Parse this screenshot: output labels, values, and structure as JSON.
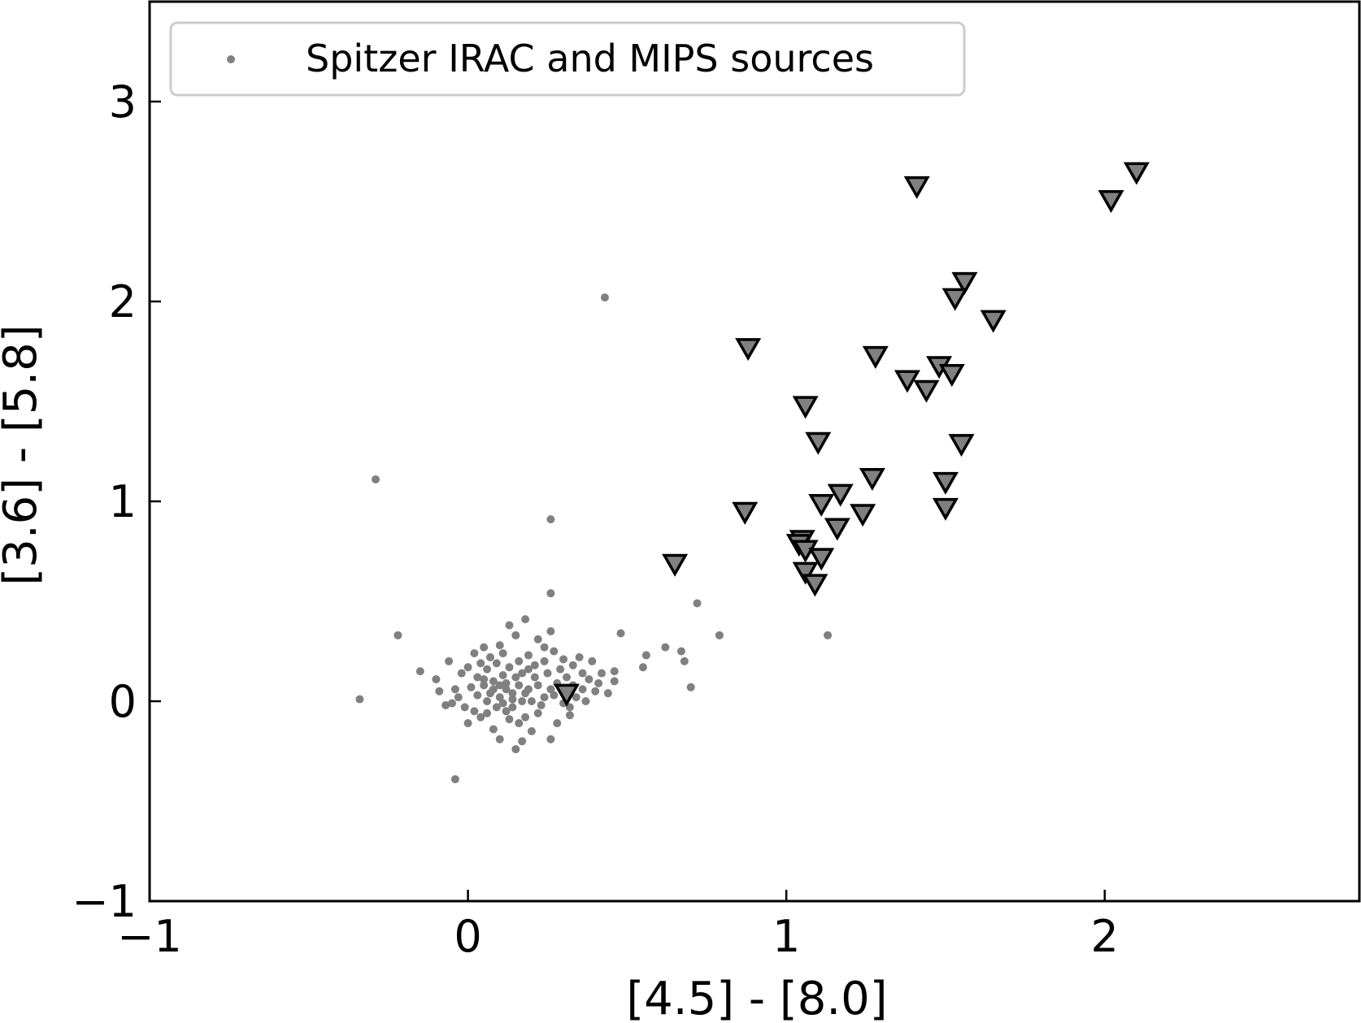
{
  "chart_data": {
    "type": "scatter",
    "title": "",
    "xlabel": "[4.5] - [8.0]",
    "ylabel": "[3.6] - [5.8]",
    "xlim": [
      -1,
      2.8
    ],
    "ylim": [
      -1,
      3.5
    ],
    "xticks": [
      -1,
      0,
      1,
      2
    ],
    "yticks": [
      -1,
      0,
      1,
      2,
      3
    ],
    "xtick_labels": [
      "−1",
      "0",
      "1",
      "2"
    ],
    "ytick_labels": [
      "−1",
      "0",
      "1",
      "2",
      "3"
    ],
    "grid": false,
    "legend": {
      "placement": "top-left"
    },
    "series": [
      {
        "name": "Spitzer IRAC and MIPS sources",
        "marker": "dot",
        "color": "#808080",
        "points": [
          [
            0.43,
            2.02
          ],
          [
            -0.29,
            1.11
          ],
          [
            0.26,
            0.91
          ],
          [
            0.26,
            0.54
          ],
          [
            -0.22,
            0.33
          ],
          [
            0.72,
            0.49
          ],
          [
            0.79,
            0.33
          ],
          [
            1.13,
            0.33
          ],
          [
            0.48,
            0.34
          ],
          [
            -0.34,
            0.01
          ],
          [
            -0.04,
            -0.39
          ],
          [
            0.7,
            0.07
          ],
          [
            0.62,
            0.27
          ],
          [
            0.67,
            0.25
          ],
          [
            0.68,
            0.2
          ],
          [
            0.56,
            0.23
          ],
          [
            0.55,
            0.17
          ],
          [
            0.46,
            0.15
          ],
          [
            0.42,
            0.14
          ],
          [
            0.38,
            0.11
          ],
          [
            0.36,
            0.06
          ],
          [
            0.4,
            0.05
          ],
          [
            0.33,
            0.18
          ],
          [
            0.3,
            0.21
          ],
          [
            0.24,
            0.27
          ],
          [
            0.18,
            0.41
          ],
          [
            0.13,
            0.38
          ],
          [
            0.22,
            0.31
          ],
          [
            0.26,
            0.35
          ],
          [
            0.15,
            0.33
          ],
          [
            0.1,
            0.28
          ],
          [
            0.05,
            0.27
          ],
          [
            0.02,
            0.24
          ],
          [
            -0.06,
            0.2
          ],
          [
            -0.15,
            0.15
          ],
          [
            -0.1,
            0.11
          ],
          [
            -0.09,
            0.05
          ],
          [
            -0.07,
            -0.02
          ],
          [
            -0.03,
            0.02
          ],
          [
            -0.01,
            -0.03
          ],
          [
            0.02,
            -0.05
          ],
          [
            0.04,
            -0.08
          ],
          [
            0.0,
            -0.11
          ],
          [
            0.08,
            -0.14
          ],
          [
            0.1,
            -0.19
          ],
          [
            0.15,
            -0.24
          ],
          [
            0.17,
            -0.2
          ],
          [
            0.26,
            -0.19
          ],
          [
            0.2,
            -0.15
          ],
          [
            0.28,
            -0.11
          ],
          [
            0.32,
            -0.07
          ],
          [
            0.22,
            -0.06
          ],
          [
            0.14,
            -0.03
          ],
          [
            0.06,
            0.0
          ],
          [
            0.1,
            0.02
          ],
          [
            0.12,
            0.06
          ],
          [
            0.16,
            0.08
          ],
          [
            0.18,
            0.04
          ],
          [
            0.2,
            0.0
          ],
          [
            0.24,
            0.02
          ],
          [
            0.26,
            0.06
          ],
          [
            0.28,
            0.09
          ],
          [
            0.31,
            0.12
          ],
          [
            0.29,
            0.16
          ],
          [
            0.25,
            0.14
          ],
          [
            0.21,
            0.12
          ],
          [
            0.19,
            0.16
          ],
          [
            0.16,
            0.2
          ],
          [
            0.13,
            0.17
          ],
          [
            0.11,
            0.13
          ],
          [
            0.08,
            0.1
          ],
          [
            0.05,
            0.08
          ],
          [
            0.03,
            0.12
          ],
          [
            0.06,
            0.16
          ],
          [
            0.09,
            0.19
          ],
          [
            0.12,
            0.09
          ],
          [
            0.15,
            0.12
          ],
          [
            0.17,
            0.14
          ],
          [
            0.22,
            0.08
          ],
          [
            0.27,
            0.03
          ],
          [
            0.3,
            -0.01
          ],
          [
            0.34,
            0.02
          ],
          [
            0.36,
            0.14
          ],
          [
            0.39,
            0.2
          ],
          [
            0.35,
            0.22
          ],
          [
            0.41,
            0.09
          ],
          [
            0.44,
            0.04
          ],
          [
            0.46,
            0.1
          ],
          [
            0.12,
            -0.05
          ],
          [
            0.09,
            -0.03
          ],
          [
            0.07,
            0.04
          ],
          [
            0.14,
            0.01
          ],
          [
            0.18,
            -0.08
          ],
          [
            0.23,
            -0.02
          ],
          [
            0.03,
            0.03
          ],
          [
            0.01,
            0.07
          ],
          [
            -0.02,
            0.14
          ],
          [
            0.0,
            0.17
          ],
          [
            0.04,
            0.19
          ],
          [
            0.07,
            0.22
          ],
          [
            0.11,
            0.24
          ],
          [
            0.19,
            0.23
          ],
          [
            0.24,
            0.2
          ],
          [
            0.21,
            0.18
          ],
          [
            0.27,
            0.25
          ],
          [
            0.33,
            0.08
          ],
          [
            0.37,
            0.0
          ],
          [
            0.16,
            -0.11
          ],
          [
            0.13,
            -0.09
          ],
          [
            0.06,
            -0.06
          ],
          [
            -0.04,
            0.06
          ],
          [
            -0.05,
            -0.01
          ],
          [
            0.08,
            0.06
          ],
          [
            0.1,
            0.08
          ],
          [
            0.14,
            0.04
          ],
          [
            0.17,
            0.0
          ],
          [
            0.19,
            0.06
          ],
          [
            0.11,
            -0.01
          ],
          [
            0.05,
            0.11
          ],
          [
            0.32,
            -0.03
          ]
        ]
      },
      {
        "name": "",
        "marker": "triangle-down",
        "color": "#808080",
        "points": [
          [
            2.1,
            2.65
          ],
          [
            2.02,
            2.51
          ],
          [
            1.41,
            2.58
          ],
          [
            1.56,
            2.1
          ],
          [
            1.53,
            2.02
          ],
          [
            1.65,
            1.91
          ],
          [
            0.88,
            1.77
          ],
          [
            1.28,
            1.73
          ],
          [
            1.48,
            1.68
          ],
          [
            1.52,
            1.64
          ],
          [
            1.38,
            1.61
          ],
          [
            1.44,
            1.56
          ],
          [
            1.06,
            1.48
          ],
          [
            1.1,
            1.3
          ],
          [
            1.55,
            1.29
          ],
          [
            1.27,
            1.12
          ],
          [
            1.5,
            1.1
          ],
          [
            1.17,
            1.04
          ],
          [
            1.11,
            0.99
          ],
          [
            1.5,
            0.97
          ],
          [
            0.87,
            0.95
          ],
          [
            1.24,
            0.94
          ],
          [
            1.16,
            0.87
          ],
          [
            1.05,
            0.81
          ],
          [
            1.04,
            0.79
          ],
          [
            1.06,
            0.76
          ],
          [
            1.11,
            0.72
          ],
          [
            0.65,
            0.69
          ],
          [
            1.06,
            0.65
          ],
          [
            1.09,
            0.59
          ],
          [
            0.31,
            0.04
          ]
        ]
      }
    ]
  }
}
